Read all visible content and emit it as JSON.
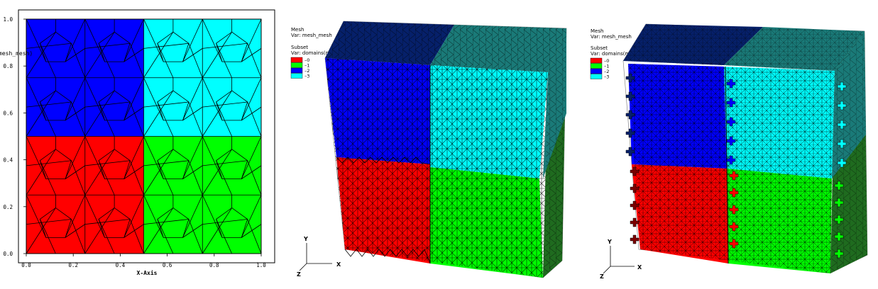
{
  "plot2d": {
    "y_axis_title": "mesh_mesh)",
    "x_axis_title": "X-Axis",
    "x_ticks": [
      "0.0",
      "0.2",
      "0.4",
      "0.6",
      "0.8",
      "1.0"
    ],
    "y_ticks": [
      "0.0",
      "0.2",
      "0.4",
      "0.6",
      "0.8",
      "1.0"
    ],
    "x_tick_values": [
      0.0,
      0.2,
      0.4,
      0.6,
      0.8,
      1.0
    ],
    "y_tick_values": [
      0.0,
      0.2,
      0.4,
      0.6,
      0.8,
      1.0
    ],
    "domains": [
      {
        "label": "0",
        "color": "#ff0000",
        "x": [
          0.0,
          0.5
        ],
        "y": [
          0.0,
          0.5
        ]
      },
      {
        "label": "1",
        "color": "#00ff00",
        "x": [
          0.5,
          1.0
        ],
        "y": [
          0.0,
          0.5
        ]
      },
      {
        "label": "2",
        "color": "#0000ff",
        "x": [
          0.0,
          0.5
        ],
        "y": [
          0.5,
          1.0
        ]
      },
      {
        "label": "3",
        "color": "#00ffff",
        "x": [
          0.5,
          1.0
        ],
        "y": [
          0.5,
          1.0
        ]
      }
    ]
  },
  "legend_middle": {
    "mesh_title": "Mesh",
    "mesh_var": "Var: mesh_mesh",
    "subset_title": "Subset",
    "subset_var": "Var: domains(mesh_mesh)",
    "entries": [
      {
        "label": "0",
        "color": "#ff0000"
      },
      {
        "label": "1",
        "color": "#00ff00"
      },
      {
        "label": "2",
        "color": "#0000ff"
      },
      {
        "label": "3",
        "color": "#00ffff"
      }
    ]
  },
  "legend_right": {
    "mesh_title": "Mesh",
    "mesh_var": "Var: mesh_mesh",
    "subset_title": "Subset",
    "subset_var": "Var: domains(mesh_mesh)",
    "entries": [
      {
        "label": "0",
        "color": "#ff0000"
      },
      {
        "label": "1",
        "color": "#00ff00"
      },
      {
        "label": "2",
        "color": "#0000ff"
      },
      {
        "label": "3",
        "color": "#00ffff"
      }
    ]
  },
  "triad_middle": {
    "y": "Y",
    "x": "X",
    "z": "Z"
  },
  "triad_right": {
    "y": "Y",
    "x": "X",
    "z": "Z"
  },
  "colors": {
    "red": "#ff0000",
    "green": "#00ff00",
    "blue": "#0000ff",
    "cyan": "#00ffff",
    "side_green": "#1f6b1f",
    "top_blue": "#06206a",
    "top_teal": "#1a7a78",
    "edge": "#000000"
  }
}
